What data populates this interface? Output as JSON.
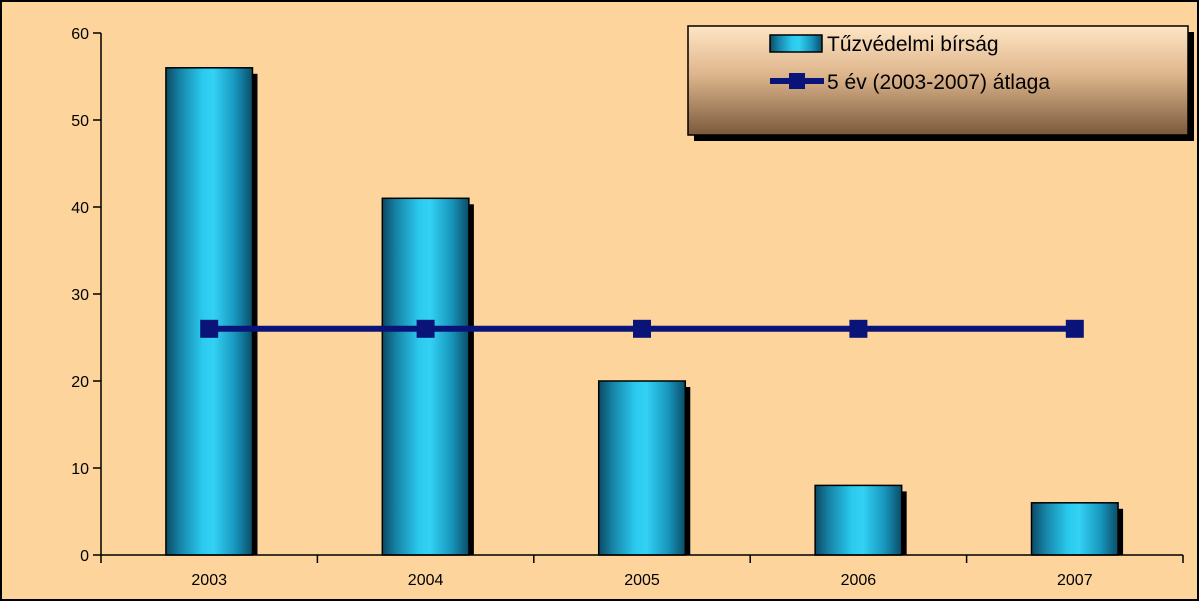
{
  "chart_data": {
    "type": "bar",
    "categories": [
      "2003",
      "2004",
      "2005",
      "2006",
      "2007"
    ],
    "series": [
      {
        "name": "Tűzvédelmi bírság",
        "type": "bar",
        "values": [
          56,
          41,
          20,
          8,
          6
        ],
        "color": "#1ab8dc"
      },
      {
        "name": "5 év (2003-2007) átlaga",
        "type": "line",
        "marker": "square",
        "values": [
          26,
          26,
          26,
          26,
          26
        ],
        "color": "#0a1478"
      }
    ],
    "ylim": [
      0,
      60
    ],
    "yticks": [
      "0",
      "10",
      "20",
      "30",
      "40",
      "50",
      "60"
    ],
    "grid": false,
    "legend_position": "top-right",
    "background_color": "#fcd49c",
    "border_color": "#000000"
  }
}
